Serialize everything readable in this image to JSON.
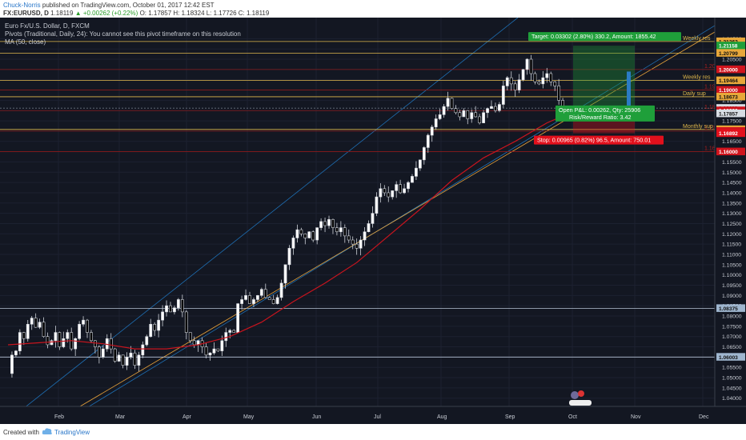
{
  "header": {
    "author": "Chuck-Norris",
    "published": "published on TradingView.com, October 01, 2017 12:42 EST",
    "symbol": "FX:EURUSD, D",
    "last": "1.18119",
    "change": "▲ +0.00262 (+0.22%)",
    "ohlc": "O: 1.17857 H: 1.18324 L: 1.17726 C: 1.18119"
  },
  "legend": {
    "title": "Euro Fx/U.S. Dollar, D, FXCM",
    "pivots": "Pivots (Traditional, Daily, 24): You cannot see this pivot timeframe on this resolution",
    "ma": "MA (50, close)"
  },
  "footer": {
    "created_with": "Created with",
    "brand": "TradingView"
  },
  "colors": {
    "background": "#131722",
    "bull": "#ffffff",
    "bear": "#000000",
    "wick": "#cfd3da",
    "ma": "#c8141e",
    "channel": "#1e6fb4",
    "trendline": "#e8a33a",
    "weekly": "#e0b84c",
    "pivot_red": "#8b1a1a",
    "target": "#1f9f3a",
    "stop": "#e2101c",
    "axis_text": "#c8ccd4",
    "price_tag": "#d8dce3"
  },
  "chart_data": {
    "type": "candlestick",
    "x_ticks": [
      "Feb",
      "Mar",
      "Apr",
      "May",
      "Jun",
      "Jul",
      "Aug",
      "Sep",
      "Oct",
      "Nov",
      "Dec"
    ],
    "y_ticks": [
      "1.21500",
      "1.21000",
      "1.20500",
      "1.20000",
      "1.19500",
      "1.19000",
      "1.18500",
      "1.18000",
      "1.17500",
      "1.17000",
      "1.16500",
      "1.16000",
      "1.15500",
      "1.15000",
      "1.14500",
      "1.14000",
      "1.13500",
      "1.13000",
      "1.12500",
      "1.12000",
      "1.11500",
      "1.11000",
      "1.10500",
      "1.10000",
      "1.09500",
      "1.09000",
      "1.08500",
      "1.08000",
      "1.07500",
      "1.07000",
      "1.06500",
      "1.06000",
      "1.05500",
      "1.05000",
      "1.04500",
      "1.04000"
    ],
    "ylim": [
      1.036,
      1.2202
    ],
    "price_tags": [
      {
        "value": 1.21362,
        "label": "1.21362",
        "kind": "weekly"
      },
      {
        "value": 1.21158,
        "label": "1.21158",
        "kind": "target"
      },
      {
        "value": 1.20799,
        "label": "1.20799",
        "kind": "weekly"
      },
      {
        "value": 1.2,
        "label": "1.20000",
        "kind": "pivot"
      },
      {
        "value": 1.19464,
        "label": "1.19464",
        "kind": "weekly"
      },
      {
        "value": 1.19,
        "label": "1.19000",
        "kind": "pivot"
      },
      {
        "value": 1.18673,
        "label": "1.18673",
        "kind": "weekly"
      },
      {
        "value": 1.18119,
        "label": "1.18119",
        "kind": "last"
      },
      {
        "value": 1.18,
        "label": "1.18000",
        "kind": "pivot"
      },
      {
        "value": 1.17857,
        "label": "1.17857",
        "kind": "open"
      },
      {
        "value": 1.17081,
        "label": "1.17081",
        "kind": "weekly"
      },
      {
        "value": 1.17,
        "label": "1.17000",
        "kind": "pivot"
      },
      {
        "value": 1.16892,
        "label": "1.16892",
        "kind": "stop"
      },
      {
        "value": 1.16,
        "label": "1.16000",
        "kind": "pivot"
      },
      {
        "value": 1.08375,
        "label": "1.08375",
        "kind": "hline"
      },
      {
        "value": 1.06003,
        "label": "1.06003",
        "kind": "hline"
      }
    ],
    "level_labels": [
      {
        "text": "Weekly res",
        "value": 1.21362
      },
      {
        "text": "Weekly res",
        "value": 1.19464
      },
      {
        "text": "Daily sup",
        "value": 1.18673
      },
      {
        "text": "Monthly sup",
        "value": 1.17081
      }
    ],
    "pivot_labels": [
      {
        "text": "1.20",
        "value": 1.2
      },
      {
        "text": "1.19",
        "value": 1.19
      },
      {
        "text": "1.18",
        "value": 1.18
      },
      {
        "text": "1.17",
        "value": 1.17
      },
      {
        "text": "1.16",
        "value": 1.16
      }
    ],
    "position": {
      "target_text": "Target: 0.03302 (2.80%) 330.2, Amount: 1855.42",
      "pnl_text": "Open P&L: 0.00262, Qty: 25906",
      "rr_text": "Risk/Reward Ratio: 3.42",
      "stop_text": "Stop: 0.00965 (0.82%) 96.5, Amount: 750.01",
      "entry": 1.17857,
      "target": 1.21158,
      "stop": 1.16892
    },
    "price_path": [
      [
        0,
        1.052
      ],
      [
        5,
        1.061
      ],
      [
        10,
        1.063
      ],
      [
        15,
        1.072
      ],
      [
        20,
        1.069
      ],
      [
        25,
        1.076
      ],
      [
        30,
        1.079
      ],
      [
        35,
        1.0745
      ],
      [
        40,
        1.077
      ],
      [
        45,
        1.07
      ],
      [
        50,
        1.066
      ],
      [
        55,
        1.068
      ],
      [
        60,
        1.072
      ],
      [
        65,
        1.065
      ],
      [
        70,
        1.069
      ],
      [
        75,
        1.072
      ],
      [
        80,
        1.064
      ],
      [
        85,
        1.069
      ],
      [
        90,
        1.076
      ],
      [
        95,
        1.078
      ],
      [
        100,
        1.072
      ],
      [
        105,
        1.068
      ],
      [
        110,
        1.065
      ],
      [
        115,
        1.06
      ],
      [
        120,
        1.064
      ],
      [
        125,
        1.069
      ],
      [
        130,
        1.064
      ],
      [
        135,
        1.058
      ],
      [
        140,
        1.061
      ],
      [
        145,
        1.056
      ],
      [
        150,
        1.06
      ],
      [
        155,
        1.062
      ],
      [
        160,
        1.056
      ],
      [
        165,
        1.061
      ],
      [
        170,
        1.066
      ],
      [
        175,
        1.07
      ],
      [
        180,
        1.076
      ],
      [
        185,
        1.073
      ],
      [
        190,
        1.078
      ],
      [
        195,
        1.082
      ],
      [
        200,
        1.085
      ],
      [
        205,
        1.082
      ],
      [
        210,
        1.084
      ],
      [
        215,
        1.088
      ],
      [
        220,
        1.082
      ],
      [
        225,
        1.072
      ],
      [
        230,
        1.068
      ],
      [
        235,
        1.066
      ],
      [
        240,
        1.068
      ],
      [
        245,
        1.065
      ],
      [
        250,
        1.061
      ],
      [
        255,
        1.062
      ],
      [
        260,
        1.064
      ],
      [
        265,
        1.063
      ],
      [
        270,
        1.068
      ],
      [
        275,
        1.072
      ],
      [
        280,
        1.073
      ],
      [
        285,
        1.072
      ],
      [
        290,
        1.086
      ],
      [
        295,
        1.088
      ],
      [
        300,
        1.09
      ],
      [
        305,
        1.086
      ],
      [
        310,
        1.088
      ],
      [
        315,
        1.09
      ],
      [
        320,
        1.093
      ],
      [
        325,
        1.089
      ],
      [
        330,
        1.088
      ],
      [
        335,
        1.086
      ],
      [
        340,
        1.089
      ],
      [
        345,
        1.096
      ],
      [
        350,
        1.105
      ],
      [
        355,
        1.113
      ],
      [
        360,
        1.118
      ],
      [
        365,
        1.122
      ],
      [
        370,
        1.12
      ],
      [
        375,
        1.118
      ],
      [
        380,
        1.121
      ],
      [
        385,
        1.117
      ],
      [
        390,
        1.123
      ],
      [
        395,
        1.126
      ],
      [
        400,
        1.124
      ],
      [
        405,
        1.127
      ],
      [
        410,
        1.123
      ],
      [
        415,
        1.121
      ],
      [
        420,
        1.123
      ],
      [
        425,
        1.119
      ],
      [
        430,
        1.117
      ],
      [
        435,
        1.115
      ],
      [
        440,
        1.113
      ],
      [
        445,
        1.117
      ],
      [
        450,
        1.121
      ],
      [
        455,
        1.125
      ],
      [
        460,
        1.13
      ],
      [
        465,
        1.138
      ],
      [
        470,
        1.142
      ],
      [
        475,
        1.14
      ],
      [
        480,
        1.138
      ],
      [
        485,
        1.141
      ],
      [
        490,
        1.144
      ],
      [
        495,
        1.14
      ],
      [
        500,
        1.142
      ],
      [
        505,
        1.145
      ],
      [
        510,
        1.148
      ],
      [
        515,
        1.152
      ],
      [
        520,
        1.156
      ],
      [
        525,
        1.162
      ],
      [
        530,
        1.168
      ],
      [
        535,
        1.172
      ],
      [
        540,
        1.176
      ],
      [
        545,
        1.178
      ],
      [
        550,
        1.182
      ],
      [
        555,
        1.186
      ],
      [
        560,
        1.181
      ],
      [
        565,
        1.179
      ],
      [
        570,
        1.177
      ],
      [
        575,
        1.18
      ],
      [
        580,
        1.176
      ],
      [
        585,
        1.179
      ],
      [
        590,
        1.177
      ],
      [
        595,
        1.174
      ],
      [
        600,
        1.179
      ],
      [
        605,
        1.181
      ],
      [
        610,
        1.182
      ],
      [
        615,
        1.18
      ],
      [
        620,
        1.183
      ],
      [
        625,
        1.192
      ],
      [
        630,
        1.196
      ],
      [
        635,
        1.193
      ],
      [
        640,
        1.19
      ],
      [
        645,
        1.195
      ],
      [
        650,
        1.2
      ],
      [
        655,
        1.205
      ],
      [
        660,
        1.198
      ],
      [
        665,
        1.194
      ],
      [
        670,
        1.193
      ],
      [
        675,
        1.196
      ],
      [
        680,
        1.198
      ],
      [
        685,
        1.194
      ],
      [
        690,
        1.192
      ],
      [
        695,
        1.185
      ],
      [
        700,
        1.179
      ],
      [
        705,
        1.177
      ],
      [
        710,
        1.1812
      ]
    ],
    "ma_path": [
      [
        0,
        1.066
      ],
      [
        40,
        1.067
      ],
      [
        80,
        1.068
      ],
      [
        120,
        1.0665
      ],
      [
        160,
        1.064
      ],
      [
        200,
        1.064
      ],
      [
        240,
        1.066
      ],
      [
        280,
        1.07
      ],
      [
        320,
        1.077
      ],
      [
        360,
        1.087
      ],
      [
        400,
        1.096
      ],
      [
        440,
        1.106
      ],
      [
        480,
        1.119
      ],
      [
        520,
        1.132
      ],
      [
        560,
        1.146
      ],
      [
        600,
        1.157
      ],
      [
        640,
        1.165
      ],
      [
        680,
        1.174
      ],
      [
        710,
        1.179
      ]
    ]
  }
}
